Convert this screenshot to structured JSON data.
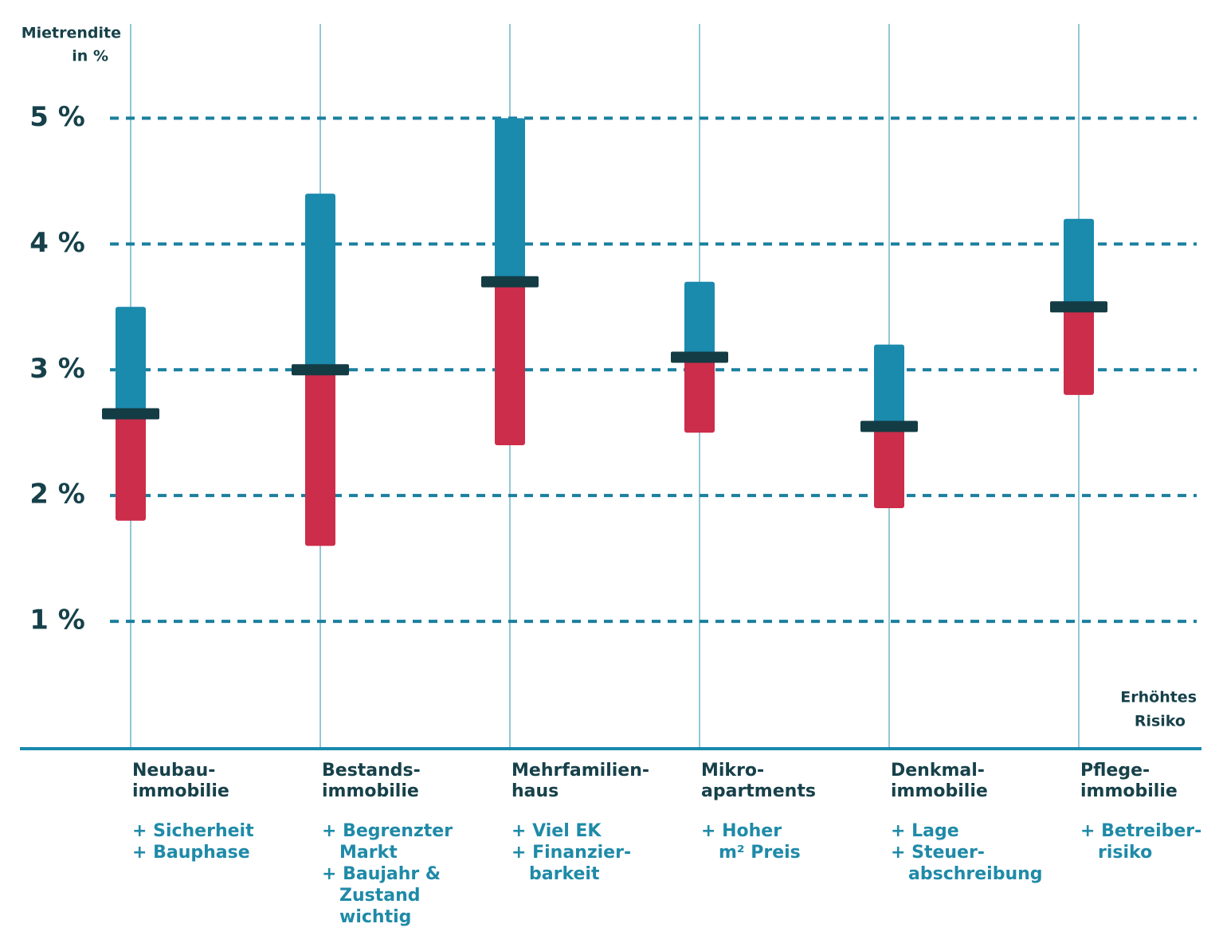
{
  "chart_data": {
    "type": "range",
    "y_label": [
      "Mietrendite",
      "in %"
    ],
    "annotation": [
      "Erhöhtes",
      "Risiko"
    ],
    "categories": [
      [
        "Neubau-",
        "immobilie"
      ],
      [
        "Bestands-",
        "immobilie"
      ],
      [
        "Mehrfamilien-",
        "haus"
      ],
      [
        "Mikro-",
        "apartments"
      ],
      [
        "Denkmal-",
        "immobilie"
      ],
      [
        "Pflege-",
        "immobilie"
      ]
    ],
    "notes": [
      [
        "+ Sicherheit",
        "+ Bauphase"
      ],
      [
        "+ Begrenzter",
        "Markt",
        "+ Baujahr &",
        "Zustand",
        "wichtig"
      ],
      [
        "+ Viel EK",
        "+ Finanzier-",
        "barkeit"
      ],
      [
        "+ Hoher",
        "m² Preis"
      ],
      [
        "+ Lage",
        "+ Steuer-",
        "abschreibung"
      ],
      [
        "+ Betreiber-",
        "risiko"
      ]
    ],
    "series": [
      {
        "color": "#cc2d4a",
        "values": [
          1.8,
          1.6,
          2.4,
          2.5,
          1.9,
          2.8
        ]
      },
      {
        "color": "#143c44",
        "values": [
          2.65,
          3.0,
          3.7,
          3.1,
          2.55,
          3.5
        ]
      },
      {
        "color": "#1a8aad",
        "values": [
          3.5,
          4.4,
          5.0,
          3.7,
          3.2,
          4.2
        ]
      }
    ],
    "ylim": [
      0,
      5.75
    ],
    "yticks": [
      {
        "value": 1,
        "label": "1 %"
      },
      {
        "value": 2,
        "label": "2 %"
      },
      {
        "value": 3,
        "label": "3 %"
      },
      {
        "value": 4,
        "label": "4 %"
      },
      {
        "value": 5,
        "label": "5 %"
      }
    ],
    "grid": true
  }
}
